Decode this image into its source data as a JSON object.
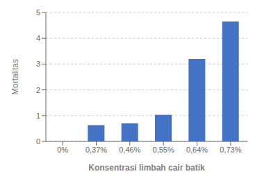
{
  "chart_data": {
    "type": "bar",
    "categories": [
      "0%",
      "0,37%",
      "0,46%",
      "0,55%",
      "0,64%",
      "0,73%"
    ],
    "values": [
      0,
      0.63,
      0.7,
      1.03,
      3.2,
      4.65
    ],
    "color": "#4472C4",
    "xlabel": "Konsentrasi limbah cair batik",
    "ylabel": "Mortalitas",
    "ylim": [
      0,
      5
    ],
    "yticks": [
      0,
      1,
      2,
      3,
      4,
      5
    ],
    "grid": true
  }
}
